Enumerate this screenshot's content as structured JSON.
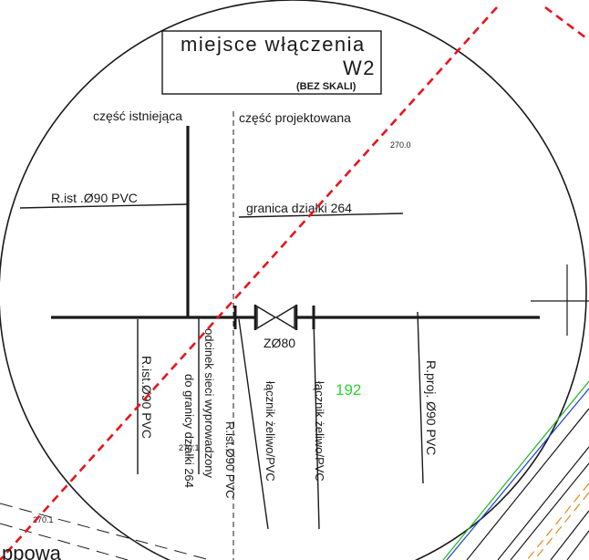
{
  "title": {
    "line1": "miejsce włączenia",
    "line2": "W2",
    "scale_note": "(BEZ SKALI)"
  },
  "labels": {
    "existing_part": "część istniejąca",
    "designed_part": "część projektowana",
    "pipe_existing_left": "R.ist .Ø90 PVC",
    "plot_boundary": "granica działki 264",
    "valve": "ZØ80",
    "pipe_existing_vertical": "R.ist.Ø90 PVC",
    "section_line1": "odcinek sieci wyprowadzony",
    "section_line2": "do granicy działki 264",
    "pipe_existing_center": "R.ist.Ø90 PVC",
    "connector_1": "łącznik żeliwo/PVC",
    "connector_2": "łącznik żeliwo/PVC",
    "pipe_designed": "R.proj. Ø90 PVC",
    "plot_number": "192",
    "elevation_top": "270.0",
    "elevation_mid": "270.1",
    "elevation_bottom": "270.1",
    "partial_bottom_text": "ppowa"
  },
  "colors": {
    "dashed_red": "#e8141b",
    "plot_number_green": "#2ed42e",
    "road_green": "#1fb81f",
    "road_blue": "#1f3fd6",
    "road_orange": "#e08a1e",
    "ink": "#1a1a1a"
  },
  "icons": {
    "valve": "gate-valve-icon",
    "crosshair": "crosshair-icon"
  }
}
